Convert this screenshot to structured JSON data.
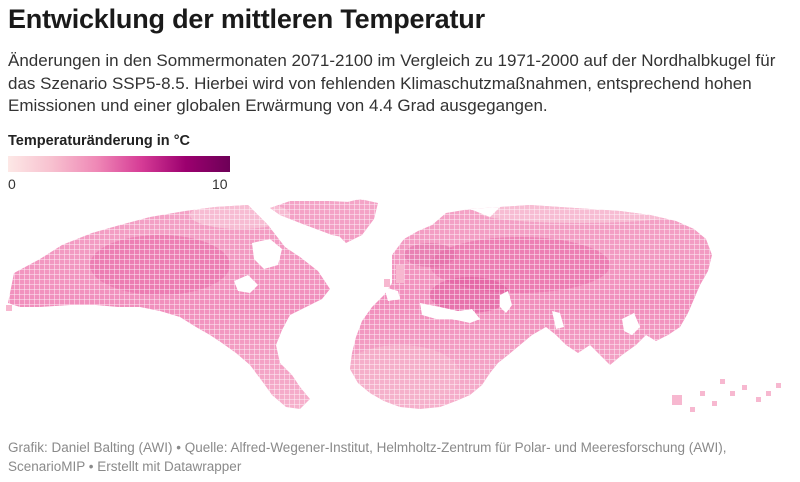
{
  "header": {
    "title": "Entwicklung der mittleren Temperatur",
    "subtitle": "Änderungen in den Sommermonaten 2071-2100 im Vergleich zu 1971-2000 auf der Nordhalbkugel für das Szenario SSP5-8.5. Hierbei wird von fehlenden Klimaschutzmaßnahmen, entsprechend hohen Emissionen und einer globalen Erwärmung von 4.4 Grad ausgegangen."
  },
  "legend": {
    "title": "Temperaturänderung in °C",
    "min_label": "0",
    "max_label": "10",
    "min_value": 0,
    "max_value": 10,
    "colors": [
      "#fde8e6",
      "#f7c0cf",
      "#ef88b6",
      "#d63c96",
      "#9c006f",
      "#6d0057"
    ]
  },
  "map": {
    "type": "gridded-heatmap",
    "region": "Nordhalbkugel",
    "variable": "Temperaturänderung Sommer 2071-2100 vs. 1971-2000",
    "scenario": "SSP5-8.5"
  },
  "footer": {
    "credit": "Grafik: Daniel Balting (AWI) • Quelle: Alfred-Wegener-Institut, Helmholtz-Zentrum für Polar- und Meeresforschung (AWI), ScenarioMIP • Erstellt mit Datawrapper"
  }
}
